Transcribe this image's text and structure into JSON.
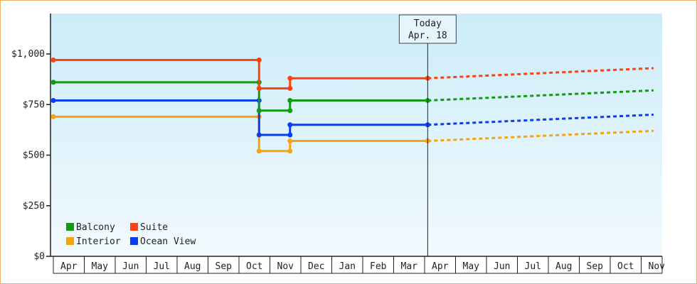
{
  "chart_data": {
    "type": "line",
    "title": "",
    "xlabel": "",
    "ylabel": "",
    "ylim": [
      0,
      1200
    ],
    "y_ticks": [
      "$0",
      "$250",
      "$500",
      "$750",
      "$1,000"
    ],
    "y_tick_values": [
      0,
      250,
      500,
      750,
      1000
    ],
    "x_months": [
      "Apr",
      "May",
      "Jun",
      "Jul",
      "Aug",
      "Sep",
      "Oct",
      "Nov",
      "Dec",
      "Jan",
      "Feb",
      "Mar",
      "Apr",
      "May",
      "Jun",
      "Jul",
      "Aug",
      "Sep",
      "Oct",
      "Nov"
    ],
    "today": {
      "line1": "Today",
      "line2": "Apr. 18",
      "x": 12.1
    },
    "legend": {
      "placement": "bottom-left"
    },
    "grid": false,
    "series": [
      {
        "name": "Suite",
        "color": "#ff4010",
        "steps": [
          [
            0.0,
            970
          ],
          [
            6.65,
            830
          ],
          [
            7.65,
            880
          ],
          [
            12.1,
            880
          ]
        ],
        "forecast": [
          [
            12.1,
            880
          ],
          [
            19.4,
            930
          ]
        ]
      },
      {
        "name": "Balcony",
        "color": "#129a12",
        "steps": [
          [
            0.0,
            860
          ],
          [
            6.65,
            720
          ],
          [
            7.65,
            770
          ],
          [
            12.1,
            770
          ]
        ],
        "forecast": [
          [
            12.1,
            770
          ],
          [
            19.4,
            820
          ]
        ]
      },
      {
        "name": "Ocean View",
        "color": "#0a3cf0",
        "steps": [
          [
            0.0,
            770
          ],
          [
            6.65,
            600
          ],
          [
            7.65,
            650
          ],
          [
            12.1,
            650
          ]
        ],
        "forecast": [
          [
            12.1,
            650
          ],
          [
            19.4,
            700
          ]
        ]
      },
      {
        "name": "Interior",
        "color": "#f5a40a",
        "steps": [
          [
            0.0,
            690
          ],
          [
            6.65,
            520
          ],
          [
            7.65,
            570
          ],
          [
            12.1,
            570
          ]
        ],
        "forecast": [
          [
            12.1,
            570
          ],
          [
            19.4,
            620
          ]
        ]
      }
    ],
    "legend_order": [
      "Balcony",
      "Suite",
      "Interior",
      "Ocean View"
    ]
  }
}
